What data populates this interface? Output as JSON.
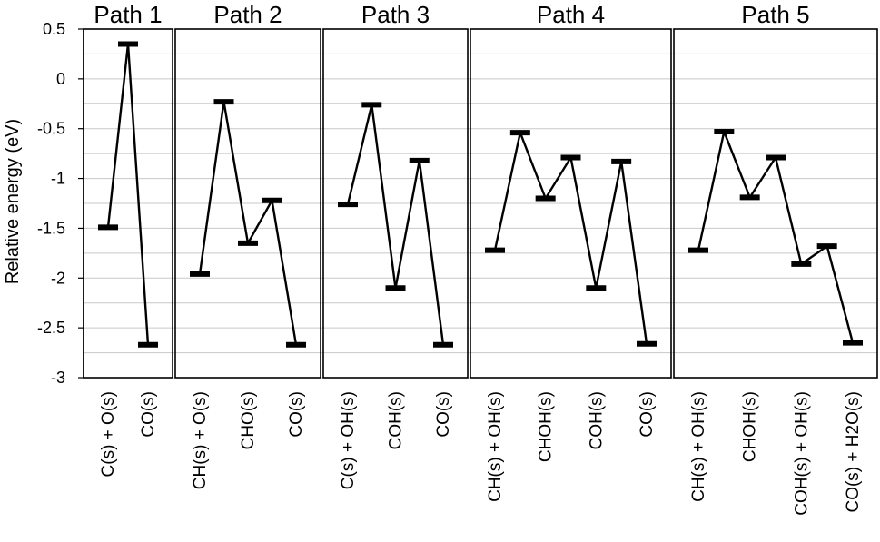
{
  "chart_data": {
    "type": "line",
    "ylabel": "Relative energy (eV)",
    "ylim": [
      -3,
      0.5
    ],
    "yticks": [
      0.5,
      0,
      -0.5,
      -1,
      -1.5,
      -2,
      -2.5,
      -3
    ],
    "ytick_labels": [
      "0.5",
      "0",
      "-0.5",
      "-1",
      "-1.5",
      "-2",
      "-2.5",
      "-3"
    ],
    "grid": true,
    "panels": [
      {
        "title": "Path 1",
        "values": [
          -1.49,
          0.35,
          -2.67
        ],
        "labels": [
          "C(s) + O(s)",
          "",
          "CO(s)"
        ]
      },
      {
        "title": "Path 2",
        "values": [
          -1.96,
          -0.23,
          -1.65,
          -1.22,
          -2.67
        ],
        "labels": [
          "CH(s) + O(s)",
          "",
          "CHO(s)",
          "",
          "CO(s)"
        ]
      },
      {
        "title": "Path 3",
        "values": [
          -1.26,
          -0.26,
          -2.1,
          -0.82,
          -2.67
        ],
        "labels": [
          "C(s) + OH(s)",
          "",
          "COH(s)",
          "",
          "CO(s)"
        ]
      },
      {
        "title": "Path 4",
        "values": [
          -1.72,
          -0.54,
          -1.2,
          -0.79,
          -2.1,
          -0.83,
          -2.66
        ],
        "labels": [
          "CH(s) + OH(s)",
          "",
          "CHOH(s)",
          "",
          "COH(s)",
          "",
          "CO(s)"
        ]
      },
      {
        "title": "Path 5",
        "values": [
          -1.72,
          -0.53,
          -1.19,
          -0.79,
          -1.86,
          -1.68,
          -2.65
        ],
        "labels": [
          "CH(s) + OH(s)",
          "",
          "CHOH(s)",
          "",
          "COH(s) + OH(s)",
          "",
          "CO(s) + H2O(s)"
        ]
      }
    ]
  }
}
